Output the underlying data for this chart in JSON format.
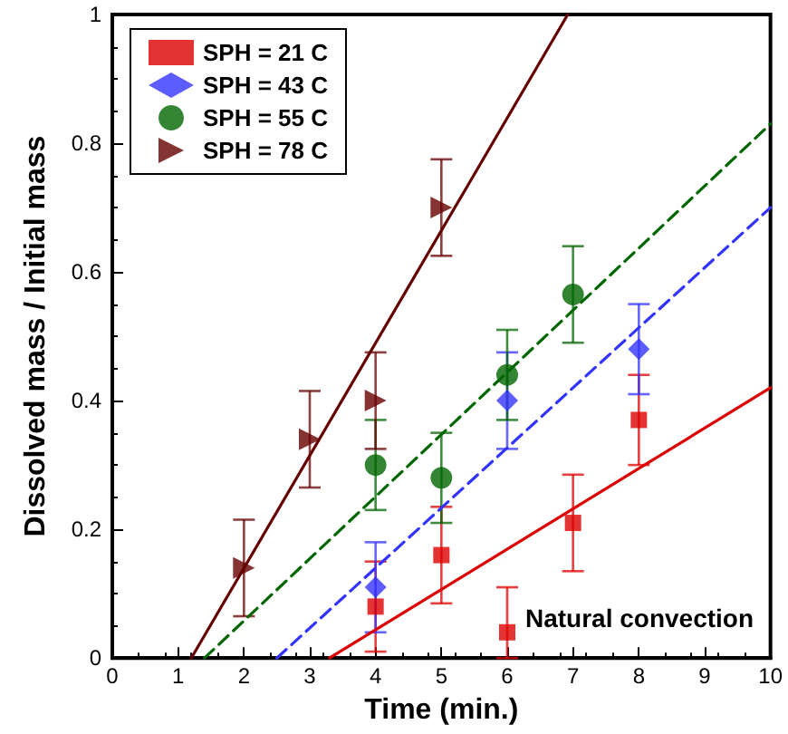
{
  "chart_data": {
    "type": "scatter",
    "xlabel": "Time (min.)",
    "ylabel": "Dissolved mass / Initial mass",
    "xlim": [
      0,
      10
    ],
    "xticks": [
      0,
      1,
      2,
      3,
      4,
      5,
      6,
      7,
      8,
      9,
      10
    ],
    "ylim": [
      0,
      1
    ],
    "yticks": [
      0,
      0.2,
      0.4,
      0.6,
      0.8,
      1
    ],
    "grid": false,
    "legend": "top left",
    "annotations": [
      {
        "text": "Natural convection",
        "x": 6,
        "y": 0.04
      }
    ],
    "series": [
      {
        "name": "SPH = 21 C",
        "color": "#dd0000",
        "marker": "square",
        "x": [
          4,
          5,
          6,
          7,
          8
        ],
        "values": [
          0.08,
          0.16,
          0.04,
          0.21,
          0.37
        ],
        "errors": [
          0.07,
          0.075,
          [
            0,
            0.11
          ],
          0.075,
          0.07
        ]
      },
      {
        "type": "line",
        "color": "#dd0000",
        "line_style": "solid",
        "x": [
          3.3,
          10
        ],
        "values": [
          0,
          0.42
        ]
      },
      {
        "name": "SPH = 43 C",
        "color": "#3333ff",
        "marker": "diamond",
        "x": [
          4,
          6,
          8
        ],
        "values": [
          0.11,
          0.4,
          0.48
        ],
        "errors": [
          0.07,
          0.075,
          0.07
        ]
      },
      {
        "type": "line",
        "color": "#3333ff",
        "line_style": "dashed",
        "x": [
          2.5,
          10
        ],
        "values": [
          0,
          0.7
        ]
      },
      {
        "name": "SPH = 55 C",
        "color": "#006600",
        "marker": "circle",
        "x": [
          4,
          5,
          6,
          7
        ],
        "values": [
          0.3,
          0.28,
          0.44,
          0.565
        ],
        "errors": [
          0.07,
          0.07,
          0.07,
          0.075
        ]
      },
      {
        "type": "line",
        "color": "#006600",
        "line_style": "dashed",
        "x": [
          1.4,
          10
        ],
        "values": [
          0,
          0.83
        ]
      },
      {
        "name": "SPH = 78 C",
        "color": "#660000",
        "marker": "triangle",
        "x": [
          2,
          3,
          4,
          5
        ],
        "values": [
          0.14,
          0.34,
          0.4,
          0.7
        ],
        "errors": [
          0.075,
          0.075,
          0.075,
          0.075
        ]
      },
      {
        "type": "line",
        "color": "#660000",
        "line_style": "solid",
        "x": [
          1.2,
          6.92
        ],
        "values": [
          0,
          1
        ]
      }
    ]
  }
}
